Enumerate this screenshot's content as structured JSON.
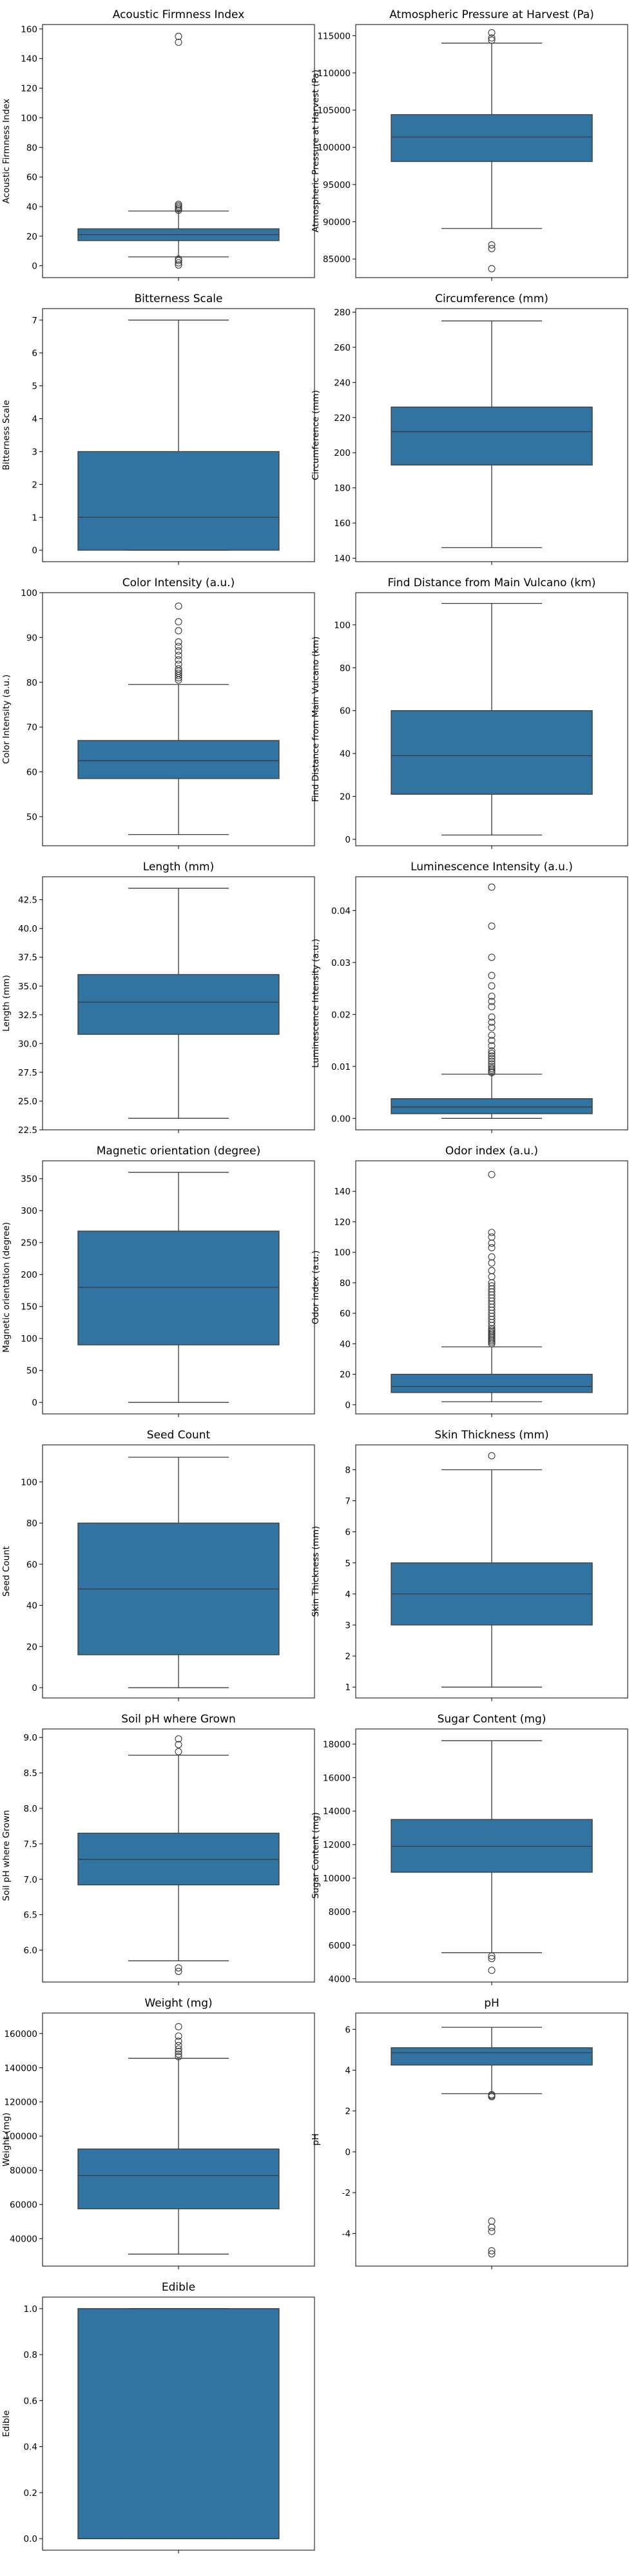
{
  "chart_data": [
    {
      "type": "box",
      "title": "Acoustic Firmness Index",
      "ylabel": "Acoustic Firmness Index",
      "ylim": [
        -8,
        163
      ],
      "yticks": [
        0,
        20,
        40,
        60,
        80,
        100,
        120,
        140,
        160
      ],
      "whisker_low": 6,
      "q1": 17,
      "median": 21,
      "q3": 25,
      "whisker_high": 37,
      "outliers": [
        0.5,
        2,
        3.5,
        4.5,
        37.5,
        38.5,
        39.5,
        40.5,
        41.5,
        151,
        155
      ]
    },
    {
      "type": "box",
      "title": "Atmospheric Pressure at Harvest (Pa)",
      "ylabel": "Atmospheric Pressure at Harvest (Pa)",
      "ylim": [
        82500,
        116500
      ],
      "yticks": [
        85000,
        90000,
        95000,
        100000,
        105000,
        110000,
        115000
      ],
      "whisker_low": 89100,
      "q1": 98100,
      "median": 101400,
      "q3": 104400,
      "whisker_high": 114000,
      "outliers": [
        83700,
        86400,
        86900,
        114400,
        114700,
        115400
      ]
    },
    {
      "type": "box",
      "title": "Bitterness Scale",
      "ylabel": "Bitterness Scale",
      "ylim": [
        -0.35,
        7.35
      ],
      "yticks": [
        0,
        1,
        2,
        3,
        4,
        5,
        6,
        7
      ],
      "whisker_low": 0,
      "q1": 0,
      "median": 1,
      "q3": 3,
      "whisker_high": 7,
      "outliers": []
    },
    {
      "type": "box",
      "title": "Circumference (mm)",
      "ylabel": "Circumference (mm)",
      "ylim": [
        138,
        282
      ],
      "yticks": [
        140,
        160,
        180,
        200,
        220,
        240,
        260,
        280
      ],
      "whisker_low": 146,
      "q1": 193,
      "median": 212,
      "q3": 226,
      "whisker_high": 275,
      "outliers": []
    },
    {
      "type": "box",
      "title": "Color Intensity (a.u.)",
      "ylabel": "Color Intensity (a.u.)",
      "ylim": [
        43.5,
        100
      ],
      "yticks": [
        50,
        60,
        70,
        80,
        90,
        100
      ],
      "whisker_low": 46,
      "q1": 58.5,
      "median": 62.5,
      "q3": 67,
      "whisker_high": 79.5,
      "outliers": [
        80.5,
        81,
        81.5,
        82,
        82.5,
        83,
        84,
        85,
        86,
        87,
        88,
        89,
        91.5,
        93.5,
        97
      ]
    },
    {
      "type": "box",
      "title": "Find Distance from Main Vulcano (km)",
      "ylabel": "Find Distance from Main Vulcano (km)",
      "ylim": [
        -3,
        115
      ],
      "yticks": [
        0,
        20,
        40,
        60,
        80,
        100
      ],
      "whisker_low": 2,
      "q1": 21,
      "median": 39,
      "q3": 60,
      "whisker_high": 110,
      "outliers": []
    },
    {
      "type": "box",
      "title": "Length (mm)",
      "ylabel": "Length (mm)",
      "ylim": [
        22.5,
        44.5
      ],
      "yticks": [
        22.5,
        25.0,
        27.5,
        30.0,
        32.5,
        35.0,
        37.5,
        40.0,
        42.5
      ],
      "decimals": 1,
      "whisker_low": 23.5,
      "q1": 30.8,
      "median": 33.6,
      "q3": 36.0,
      "whisker_high": 43.5,
      "outliers": []
    },
    {
      "type": "box",
      "title": "Luminescence Intensity (a.u.)",
      "ylabel": "Luminescence Intensity (a.u.)",
      "ylim": [
        -0.0022,
        0.0465
      ],
      "yticks": [
        0.0,
        0.01,
        0.02,
        0.03,
        0.04
      ],
      "decimals": 2,
      "whisker_low": 0.0,
      "q1": 0.0009,
      "median": 0.0022,
      "q3": 0.0038,
      "whisker_high": 0.0085,
      "outliers": [
        0.0088,
        0.009,
        0.0093,
        0.0096,
        0.01,
        0.0105,
        0.011,
        0.0115,
        0.012,
        0.0125,
        0.013,
        0.014,
        0.015,
        0.016,
        0.0175,
        0.0185,
        0.0195,
        0.0215,
        0.0225,
        0.0235,
        0.0255,
        0.0275,
        0.031,
        0.037,
        0.0445
      ]
    },
    {
      "type": "box",
      "title": "Magnetic orientation (degree)",
      "ylabel": "Magnetic orientation (degree)",
      "ylim": [
        -18,
        378
      ],
      "yticks": [
        0,
        50,
        100,
        150,
        200,
        250,
        300,
        350
      ],
      "whisker_low": 0,
      "q1": 90,
      "median": 180,
      "q3": 268,
      "whisker_high": 360,
      "outliers": []
    },
    {
      "type": "box",
      "title": "Odor index (a.u.)",
      "ylabel": "Odor index (a.u.)",
      "ylim": [
        -6,
        160
      ],
      "yticks": [
        0,
        20,
        40,
        60,
        80,
        100,
        120,
        140
      ],
      "whisker_low": 2,
      "q1": 8,
      "median": 12,
      "q3": 20,
      "whisker_high": 38,
      "outliers": [
        40,
        41,
        42,
        43,
        44,
        45,
        46,
        47,
        48,
        49,
        50,
        52,
        54,
        56,
        58,
        60,
        62,
        64,
        66,
        68,
        70,
        72,
        74,
        76,
        78,
        80,
        84,
        88,
        93,
        97,
        103,
        106,
        110,
        113,
        151
      ]
    },
    {
      "type": "box",
      "title": "Seed Count",
      "ylabel": "Seed Count",
      "ylim": [
        -5,
        118
      ],
      "yticks": [
        0,
        20,
        40,
        60,
        80,
        100
      ],
      "whisker_low": 0,
      "q1": 16,
      "median": 48,
      "q3": 80,
      "whisker_high": 112,
      "outliers": []
    },
    {
      "type": "box",
      "title": "Skin Thickness (mm)",
      "ylabel": "Skin Thickness (mm)",
      "ylim": [
        0.65,
        8.8
      ],
      "yticks": [
        1,
        2,
        3,
        4,
        5,
        6,
        7,
        8
      ],
      "whisker_low": 1,
      "q1": 3,
      "median": 4,
      "q3": 5,
      "whisker_high": 8,
      "outliers": [
        8.45
      ]
    },
    {
      "type": "box",
      "title": "Soil pH where Grown",
      "ylabel": "Soil pH where Grown",
      "ylim": [
        5.55,
        9.12
      ],
      "yticks": [
        6.0,
        6.5,
        7.0,
        7.5,
        8.0,
        8.5,
        9.0
      ],
      "decimals": 1,
      "whisker_low": 5.85,
      "q1": 6.92,
      "median": 7.28,
      "q3": 7.65,
      "whisker_high": 8.75,
      "outliers": [
        5.7,
        5.75,
        8.8,
        8.9,
        8.98
      ]
    },
    {
      "type": "box",
      "title": "Sugar Content (mg)",
      "ylabel": "Sugar Content (mg)",
      "ylim": [
        3800,
        18900
      ],
      "yticks": [
        4000,
        6000,
        8000,
        10000,
        12000,
        14000,
        16000,
        18000
      ],
      "whisker_low": 5550,
      "q1": 10350,
      "median": 11900,
      "q3": 13500,
      "whisker_high": 18200,
      "outliers": [
        4500,
        5200,
        5350
      ]
    },
    {
      "type": "box",
      "title": "Weight (mg)",
      "ylabel": "Weight (mg)",
      "ylim": [
        24000,
        172000
      ],
      "yticks": [
        40000,
        60000,
        80000,
        100000,
        120000,
        140000,
        160000
      ],
      "whisker_low": 31000,
      "q1": 57500,
      "median": 77000,
      "q3": 92500,
      "whisker_high": 145500,
      "outliers": [
        146500,
        148000,
        149500,
        151000,
        153000,
        155500,
        158500,
        164000
      ]
    },
    {
      "type": "box",
      "title": "pH",
      "ylabel": "pH",
      "ylim": [
        -5.6,
        6.8
      ],
      "yticks": [
        -4,
        -2,
        0,
        2,
        4,
        6
      ],
      "whisker_low": 2.85,
      "q1": 4.25,
      "median": 4.85,
      "q3": 5.1,
      "whisker_high": 6.1,
      "outliers": [
        2.7,
        2.75,
        2.8,
        -3.4,
        -3.7,
        -3.9,
        -4.85,
        -5.0
      ]
    },
    {
      "type": "box",
      "title": "Edible",
      "ylabel": "Edible",
      "ylim": [
        -0.05,
        1.05
      ],
      "yticks": [
        0.0,
        0.2,
        0.4,
        0.6,
        0.8,
        1.0
      ],
      "decimals": 1,
      "whisker_low": 0,
      "q1": 0,
      "median": 0,
      "q3": 1,
      "whisker_high": 1,
      "outliers": []
    }
  ],
  "colors": {
    "box": "#3274a1",
    "line": "#3b3b3b"
  }
}
